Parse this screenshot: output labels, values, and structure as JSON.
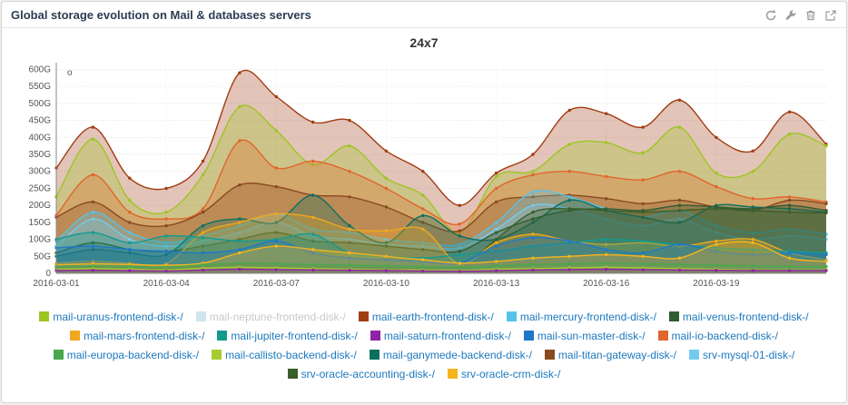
{
  "panel": {
    "title": "Global storage evolution on Mail & databases servers",
    "toolbar_icons": [
      "refresh-icon",
      "wrench-icon",
      "trash-icon",
      "external-link-icon"
    ]
  },
  "chart_title": "24x7",
  "theme": {
    "title_color": "#2b3d52",
    "legend_link_color": "#1d78bd",
    "legend_disabled_color": "#c8c8c8",
    "axis_text_color": "#555555",
    "panel_background": "#ffffff",
    "page_background": "#efefef"
  },
  "chart_data": {
    "type": "area",
    "title": "24x7",
    "x_tick_labels": [
      "2016-03-01",
      "2016-03-04",
      "2016-03-07",
      "2016-03-10",
      "2016-03-13",
      "2016-03-16",
      "2016-03-19"
    ],
    "x_tick_indices": [
      0,
      3,
      6,
      9,
      12,
      15,
      18
    ],
    "n_points": 22,
    "ylim": [
      0,
      620
    ],
    "y_tick_step": 50,
    "y_unit": "G",
    "corner_marker": "o",
    "grid": true,
    "legend_position": "bottom",
    "series": [
      {
        "label": "mail-earth-frontend-disk-/",
        "color": "#a13d13",
        "hidden": false,
        "values": [
          310,
          430,
          280,
          250,
          330,
          590,
          520,
          445,
          450,
          360,
          300,
          200,
          295,
          350,
          480,
          470,
          430,
          510,
          400,
          360,
          475,
          380
        ]
      },
      {
        "label": "mail-uranus-frontend-disk-/",
        "color": "#9dc522",
        "hidden": false,
        "values": [
          225,
          395,
          215,
          180,
          290,
          490,
          420,
          320,
          375,
          280,
          230,
          120,
          285,
          300,
          380,
          385,
          355,
          430,
          295,
          300,
          410,
          375
        ]
      },
      {
        "label": "mail-io-backend-disk-/",
        "color": "#e0662c",
        "hidden": false,
        "values": [
          170,
          290,
          180,
          160,
          190,
          390,
          310,
          330,
          300,
          250,
          190,
          145,
          250,
          290,
          300,
          285,
          275,
          300,
          255,
          220,
          225,
          210
        ]
      },
      {
        "label": "mail-titan-gateway-disk-/",
        "color": "#8a4a21",
        "hidden": false,
        "values": [
          165,
          210,
          150,
          140,
          180,
          260,
          255,
          230,
          225,
          195,
          150,
          125,
          210,
          225,
          230,
          220,
          205,
          215,
          195,
          185,
          215,
          205
        ]
      },
      {
        "label": "mail-mercury-frontend-disk-/",
        "color": "#55c3ea",
        "hidden": false,
        "values": [
          95,
          180,
          120,
          90,
          110,
          140,
          175,
          130,
          120,
          100,
          90,
          85,
          150,
          240,
          225,
          190,
          165,
          185,
          140,
          120,
          130,
          115
        ]
      },
      {
        "label": "srv-mysql-01-disk-/",
        "color": "#74cbee",
        "hidden": false,
        "values": [
          80,
          160,
          100,
          80,
          95,
          120,
          150,
          110,
          100,
          85,
          80,
          75,
          130,
          200,
          190,
          160,
          140,
          160,
          120,
          100,
          110,
          100
        ]
      },
      {
        "label": "mail-ganymede-backend-disk-/",
        "color": "#0e6f60",
        "hidden": false,
        "values": [
          50,
          70,
          60,
          55,
          140,
          160,
          150,
          230,
          140,
          90,
          170,
          110,
          100,
          150,
          215,
          185,
          165,
          150,
          200,
          195,
          190,
          180
        ]
      },
      {
        "label": "mail-venus-frontend-disk-/",
        "color": "#2f5d31",
        "hidden": false,
        "values": [
          60,
          90,
          70,
          65,
          80,
          100,
          120,
          95,
          90,
          80,
          70,
          65,
          120,
          160,
          185,
          190,
          185,
          200,
          195,
          190,
          200,
          185
        ]
      },
      {
        "label": "srv-oracle-accounting-disk-/",
        "color": "#3a5e2a",
        "hidden": false,
        "values": [
          15,
          18,
          15,
          14,
          20,
          25,
          22,
          20,
          18,
          16,
          15,
          14,
          100,
          180,
          190,
          185,
          180,
          185,
          190,
          185,
          180,
          178
        ]
      },
      {
        "label": "mail-mars-frontend-disk-/",
        "color": "#f0a71f",
        "hidden": false,
        "values": [
          30,
          35,
          30,
          28,
          120,
          150,
          175,
          165,
          130,
          125,
          130,
          28,
          90,
          115,
          95,
          85,
          90,
          80,
          95,
          100,
          60,
          40
        ]
      },
      {
        "label": "mail-jupiter-frontend-disk-/",
        "color": "#149a8d",
        "hidden": false,
        "values": [
          100,
          120,
          90,
          110,
          105,
          95,
          100,
          115,
          60,
          50,
          45,
          55,
          65,
          80,
          90,
          100,
          95,
          85,
          75,
          70,
          65,
          60
        ]
      },
      {
        "label": "mail-sun-master-disk-/",
        "color": "#1e78c8",
        "hidden": false,
        "values": [
          75,
          80,
          70,
          65,
          60,
          70,
          95,
          60,
          45,
          40,
          35,
          30,
          80,
          105,
          95,
          70,
          60,
          85,
          65,
          55,
          60,
          55
        ]
      },
      {
        "label": "srv-oracle-crm-disk-/",
        "color": "#f6b41e",
        "hidden": false,
        "values": [
          25,
          28,
          26,
          24,
          30,
          60,
          80,
          70,
          60,
          50,
          40,
          30,
          35,
          45,
          50,
          55,
          50,
          45,
          85,
          90,
          45,
          35
        ]
      },
      {
        "label": "mail-europa-backend-disk-/",
        "color": "#49a84c",
        "hidden": false,
        "values": [
          20,
          22,
          20,
          18,
          25,
          30,
          28,
          26,
          24,
          22,
          20,
          18,
          22,
          26,
          28,
          30,
          28,
          26,
          24,
          22,
          20,
          20
        ]
      },
      {
        "label": "mail-callisto-backend-disk-/",
        "color": "#a8cb2f",
        "hidden": false,
        "values": [
          12,
          14,
          12,
          10,
          15,
          18,
          16,
          14,
          12,
          10,
          10,
          8,
          12,
          14,
          16,
          18,
          16,
          14,
          12,
          10,
          10,
          10
        ]
      },
      {
        "label": "mail-saturn-frontend-disk-/",
        "color": "#8f24a8",
        "hidden": false,
        "values": [
          8,
          9,
          8,
          7,
          10,
          12,
          11,
          10,
          9,
          8,
          7,
          6,
          8,
          10,
          11,
          12,
          11,
          10,
          9,
          8,
          8,
          8
        ]
      },
      {
        "label": "mail-neptune-frontend-disk-/",
        "color": "#cfe6ec",
        "hidden": true,
        "values": []
      }
    ],
    "legend_rows": [
      [
        1,
        16,
        0,
        4,
        7
      ],
      [
        9,
        10,
        15,
        11,
        2
      ],
      [
        13,
        14,
        6,
        3,
        5
      ],
      [
        8,
        12
      ]
    ]
  }
}
